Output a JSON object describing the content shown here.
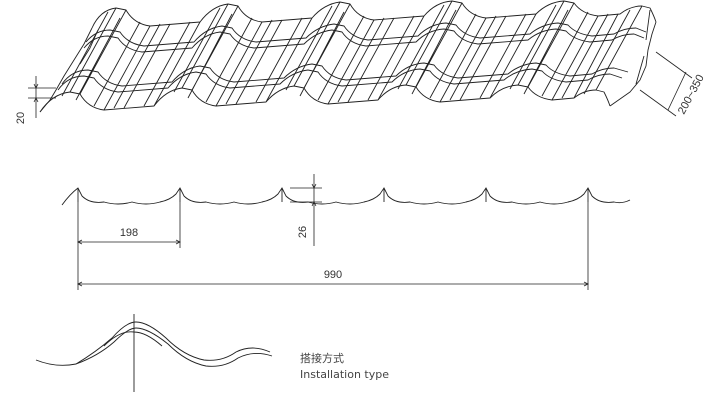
{
  "drawing": {
    "iso_view": {
      "height_dim": "20",
      "width_range_dim": "200~350"
    },
    "profile_view": {
      "pitch_dim": "198",
      "rib_height_dim": "26",
      "overall_width_dim": "990"
    },
    "installation": {
      "label_cn": "搭接方式",
      "label_en": "Installation type"
    }
  }
}
